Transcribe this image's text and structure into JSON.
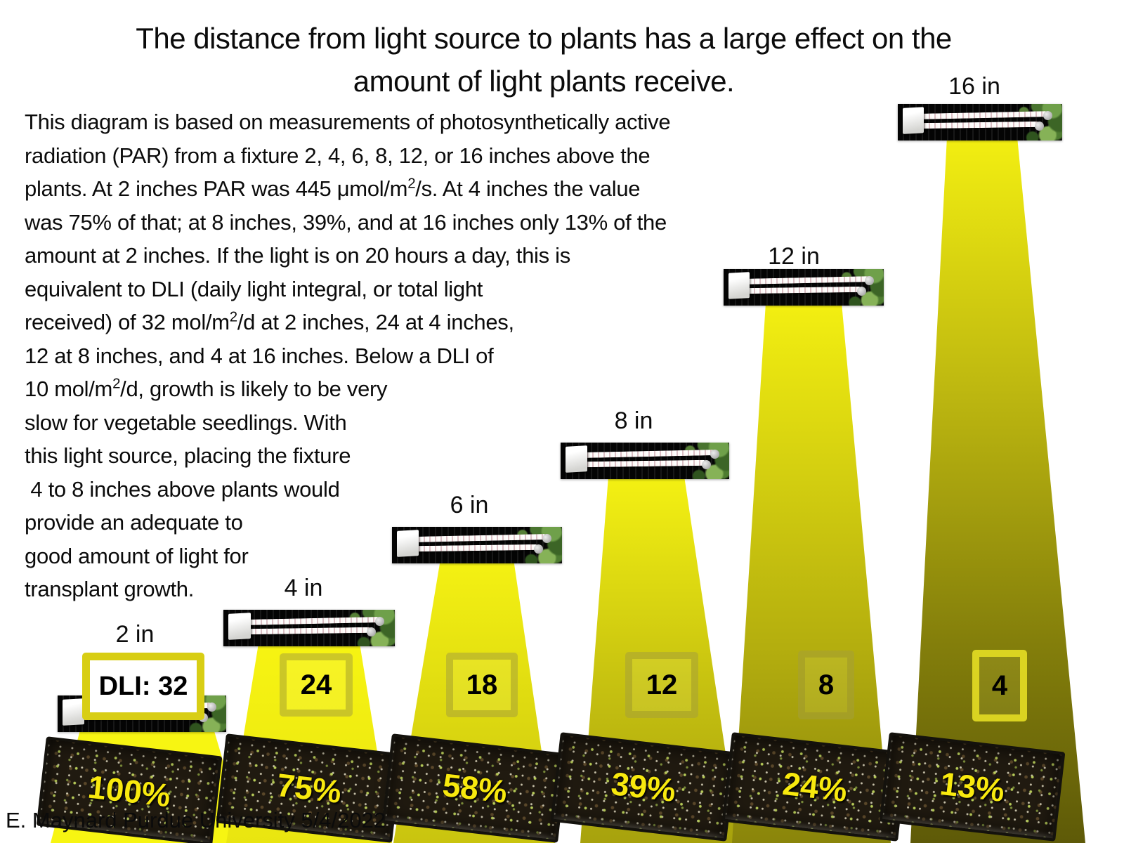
{
  "slide": {
    "title_lines": [
      "The distance from light source to plants has a large effect on the",
      "amount of light plants receive."
    ],
    "body_lines": [
      "This diagram is based on measurements of photosynthetically active",
      "radiation (PAR) from a fixture 2, 4, 6, 8, 12, or 16 inches above the",
      "plants. At 2 inches PAR was 445 μmol/m²/s. At 4 inches the value",
      "was 75% of that; at 8 inches, 39%, and at 16 inches only 13% of the",
      "amount at 2 inches. If the light is on 20 hours a day, this is",
      "equivalent to DLI (daily light integral, or total light",
      "received) of 32 mol/m²/d at 2 inches, 24 at 4 inches,",
      "12 at 8 inches, and 4 at 16 inches. Below a DLI of",
      "10 mol/m²/d, growth is likely to be very",
      "slow for vegetable seedlings. With",
      "this light source, placing the fixture",
      " 4 to 8 inches above plants would",
      "provide an adequate to",
      "good amount of light for",
      "transplant growth."
    ],
    "attribution": "E. Maynard Purdue University 5/4/2022"
  },
  "columns": [
    {
      "height_label": "2 in",
      "dli_label": "DLI: 32",
      "percent": "100%"
    },
    {
      "height_label": "4 in",
      "dli_label": "24",
      "percent": "75%"
    },
    {
      "height_label": "6 in",
      "dli_label": "18",
      "percent": "58%"
    },
    {
      "height_label": "8 in",
      "dli_label": "12",
      "percent": "39%"
    },
    {
      "height_label": "12 in",
      "dli_label": "8",
      "percent": "24%"
    },
    {
      "height_label": "16 in",
      "dli_label": "4",
      "percent": "13%"
    }
  ],
  "diagram_data": {
    "par_at_2_inches_umol_per_m2_s": 445,
    "photoperiod_hours_per_day": 20,
    "heights_in": [
      2,
      4,
      6,
      8,
      12,
      16
    ],
    "dli_mol_per_m2_d": [
      32,
      24,
      18,
      12,
      8,
      4
    ],
    "percent_of_2in_par": [
      100,
      75,
      58,
      39,
      24,
      13
    ]
  },
  "colors": {
    "beam_bright_yellow": "#f5f212",
    "beam_dark_olive": "#5e5a08",
    "dli_box_border": "#d8ce14",
    "percent_text": "#f8e90e"
  }
}
